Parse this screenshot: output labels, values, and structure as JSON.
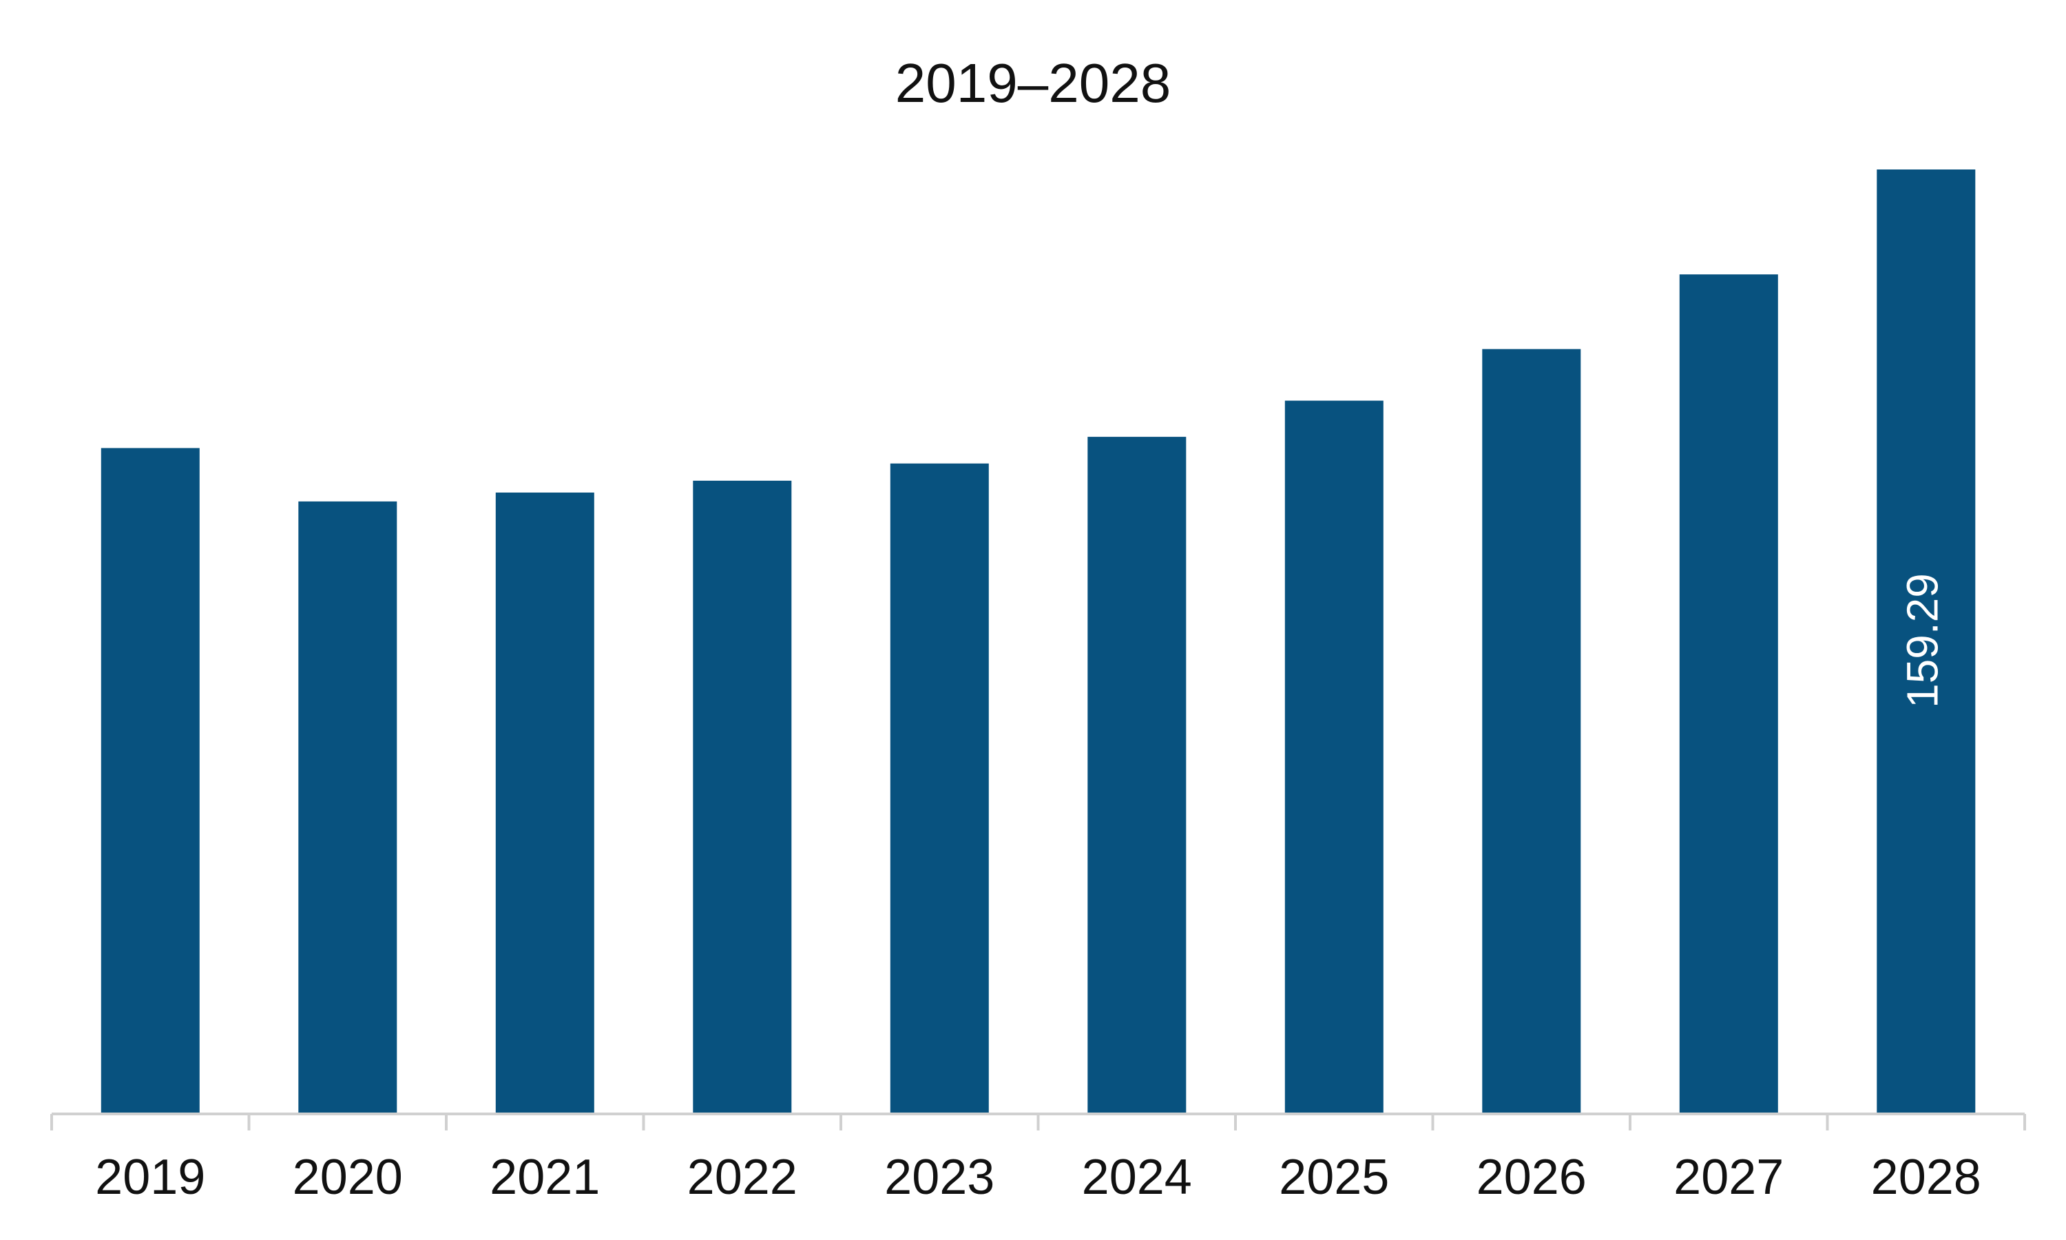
{
  "chart_data": {
    "type": "bar",
    "title": "2019–2028",
    "categories": [
      "2019",
      "2020",
      "2021",
      "2022",
      "2023",
      "2024",
      "2025",
      "2026",
      "2027",
      "2028"
    ],
    "values": [
      112.3,
      103.3,
      104.8,
      106.8,
      109.7,
      114.2,
      120.3,
      129.0,
      141.6,
      159.29
    ],
    "data_labels": [
      null,
      null,
      null,
      null,
      null,
      null,
      null,
      null,
      null,
      "159.29"
    ],
    "xlabel": "",
    "ylabel": "",
    "ylim": [
      0,
      170
    ],
    "grid": false,
    "legend": "none",
    "colors": {
      "bar": "#08527f",
      "axis": "#d0d0d0",
      "text": "#111111",
      "data_label": "#ffffff"
    }
  }
}
